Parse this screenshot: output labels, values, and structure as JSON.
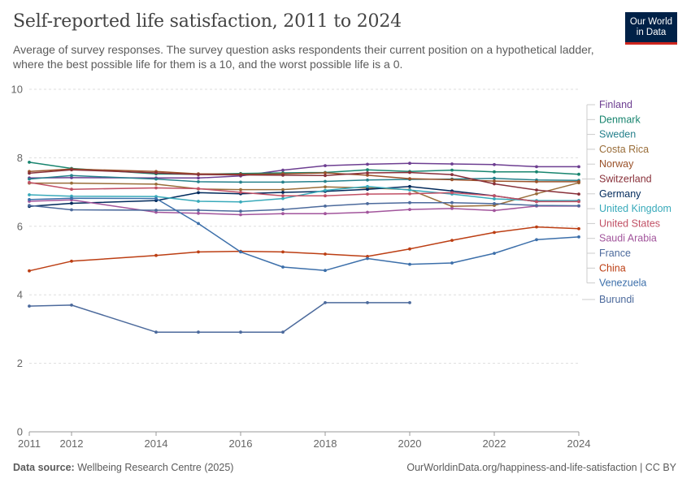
{
  "header": {
    "title": "Self-reported life satisfaction, 2011 to 2024",
    "subtitle": "Average of survey responses. The survey question asks respondents their current position on a hypothetical ladder, where the best possible life for them is a 10, and the worst possible life is a 0."
  },
  "logo": {
    "line1": "Our World",
    "line2": "in Data",
    "bg": "#002147",
    "accent": "#ce261e"
  },
  "footer": {
    "source_label": "Data source:",
    "source": "Wellbeing Research Centre (2025)",
    "url": "OurWorldinData.org/happiness-and-life-satisfaction | CC BY"
  },
  "chart_data": {
    "type": "line",
    "title": "Self-reported life satisfaction, 2011 to 2024",
    "xlabel": "",
    "ylabel": "",
    "x_ticks": [
      2011,
      2012,
      2014,
      2016,
      2018,
      2020,
      2022,
      2024
    ],
    "y_ticks": [
      0,
      2,
      4,
      6,
      8,
      10
    ],
    "xlim": [
      2011,
      2024
    ],
    "ylim": [
      0,
      10
    ],
    "grid": "horizontal dashed",
    "legend": "right",
    "x": [
      2011,
      2012,
      2014,
      2015,
      2016,
      2017,
      2018,
      2019,
      2020,
      2021,
      2022,
      2023,
      2024
    ],
    "series": [
      {
        "name": "Finland",
        "color": "#6d3e91",
        "values": [
          7.41,
          7.42,
          7.41,
          7.41,
          7.47,
          7.64,
          7.77,
          7.81,
          7.84,
          7.82,
          7.8,
          7.74,
          7.74
        ]
      },
      {
        "name": "Denmark",
        "color": "#18856f",
        "values": [
          7.87,
          7.69,
          7.53,
          7.52,
          7.54,
          7.56,
          7.57,
          7.65,
          7.6,
          7.64,
          7.59,
          7.59,
          7.52
        ]
      },
      {
        "name": "Sweden",
        "color": "#26818c",
        "values": [
          7.38,
          7.48,
          7.38,
          7.3,
          7.29,
          7.29,
          7.31,
          7.35,
          7.37,
          7.38,
          7.4,
          7.35,
          7.34
        ]
      },
      {
        "name": "Costa Rica",
        "color": "#996d39",
        "values": [
          7.26,
          7.26,
          7.23,
          7.09,
          7.07,
          7.07,
          7.15,
          7.12,
          7.07,
          6.58,
          6.61,
          6.95,
          7.27
        ]
      },
      {
        "name": "Norway",
        "color": "#9a5129",
        "values": [
          7.6,
          7.67,
          7.6,
          7.53,
          7.52,
          7.53,
          7.56,
          7.49,
          7.39,
          7.36,
          7.32,
          7.3,
          7.3
        ]
      },
      {
        "name": "Switzerland",
        "color": "#883039",
        "values": [
          7.55,
          7.65,
          7.56,
          7.51,
          7.5,
          7.49,
          7.48,
          7.56,
          7.57,
          7.51,
          7.24,
          7.06,
          6.94
        ]
      },
      {
        "name": "Germany",
        "color": "#00295b",
        "values": [
          6.58,
          6.67,
          6.75,
          6.98,
          6.95,
          6.99,
          7.02,
          7.08,
          7.16,
          7.03,
          6.89,
          6.72,
          6.75
        ]
      },
      {
        "name": "United Kingdom",
        "color": "#38aaba",
        "values": [
          6.92,
          6.88,
          6.87,
          6.73,
          6.71,
          6.81,
          7.05,
          7.16,
          7.06,
          6.94,
          6.8,
          6.75,
          6.75
        ]
      },
      {
        "name": "United States",
        "color": "#c15065",
        "values": [
          7.28,
          7.08,
          7.12,
          7.1,
          6.99,
          6.89,
          6.89,
          6.94,
          6.95,
          6.98,
          6.89,
          6.72,
          6.72
        ]
      },
      {
        "name": "Saudi Arabia",
        "color": "#a2559c",
        "values": [
          6.73,
          6.77,
          6.41,
          6.38,
          6.34,
          6.37,
          6.37,
          6.41,
          6.49,
          6.52,
          6.46,
          6.59,
          6.59
        ]
      },
      {
        "name": "France",
        "color": "#4c6a9c",
        "values": [
          6.61,
          6.48,
          6.47,
          6.47,
          6.44,
          6.49,
          6.59,
          6.66,
          6.69,
          6.69,
          6.66,
          6.61,
          6.6
        ]
      },
      {
        "name": "China",
        "color": "#bc3e13",
        "values": [
          4.7,
          4.98,
          5.15,
          5.25,
          5.27,
          5.25,
          5.19,
          5.12,
          5.34,
          5.59,
          5.82,
          5.98,
          5.93
        ]
      },
      {
        "name": "Venezuela",
        "color": "#3c6faa",
        "values": [
          6.78,
          6.82,
          6.81,
          6.08,
          5.25,
          4.81,
          4.71,
          5.06,
          4.89,
          4.93,
          5.21,
          5.61,
          5.69
        ]
      },
      {
        "name": "Burundi",
        "color": "#4c6a9c",
        "values": [
          3.67,
          3.7,
          2.91,
          2.91,
          2.91,
          2.91,
          3.77,
          3.77,
          3.77,
          null,
          null,
          null,
          null
        ]
      }
    ]
  }
}
